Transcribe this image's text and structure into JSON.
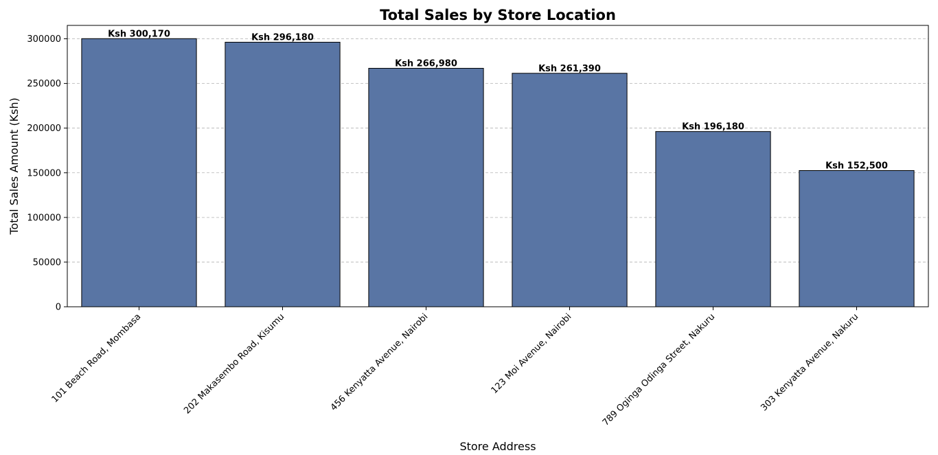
{
  "chart_data": {
    "type": "bar",
    "title": "Total Sales by Store Location",
    "xlabel": "Store Address",
    "ylabel": "Total Sales Amount (Ksh)",
    "categories": [
      "101 Beach Road, Mombasa",
      "202 Makasembo Road, Kisumu",
      "456 Kenyatta Avenue, Nairobi",
      "123 Moi Avenue, Nairobi",
      "789 Oginga Odinga Street, Nakuru",
      "303 Kenyatta Avenue, Nakuru"
    ],
    "values": [
      300170,
      296180,
      266980,
      261390,
      196180,
      152500
    ],
    "data_labels": [
      "Ksh 300,170",
      "Ksh 296,180",
      "Ksh 266,980",
      "Ksh 261,390",
      "Ksh 196,180",
      "Ksh 152,500"
    ],
    "y_ticks": [
      0,
      50000,
      100000,
      150000,
      200000,
      250000,
      300000
    ],
    "y_tick_labels": [
      "0",
      "50000",
      "100000",
      "150000",
      "200000",
      "250000",
      "300000"
    ],
    "ylim": [
      0,
      315000
    ],
    "grid": "y-dashed",
    "bar_color": "#5975a4",
    "bar_edge_color": "#000000"
  }
}
